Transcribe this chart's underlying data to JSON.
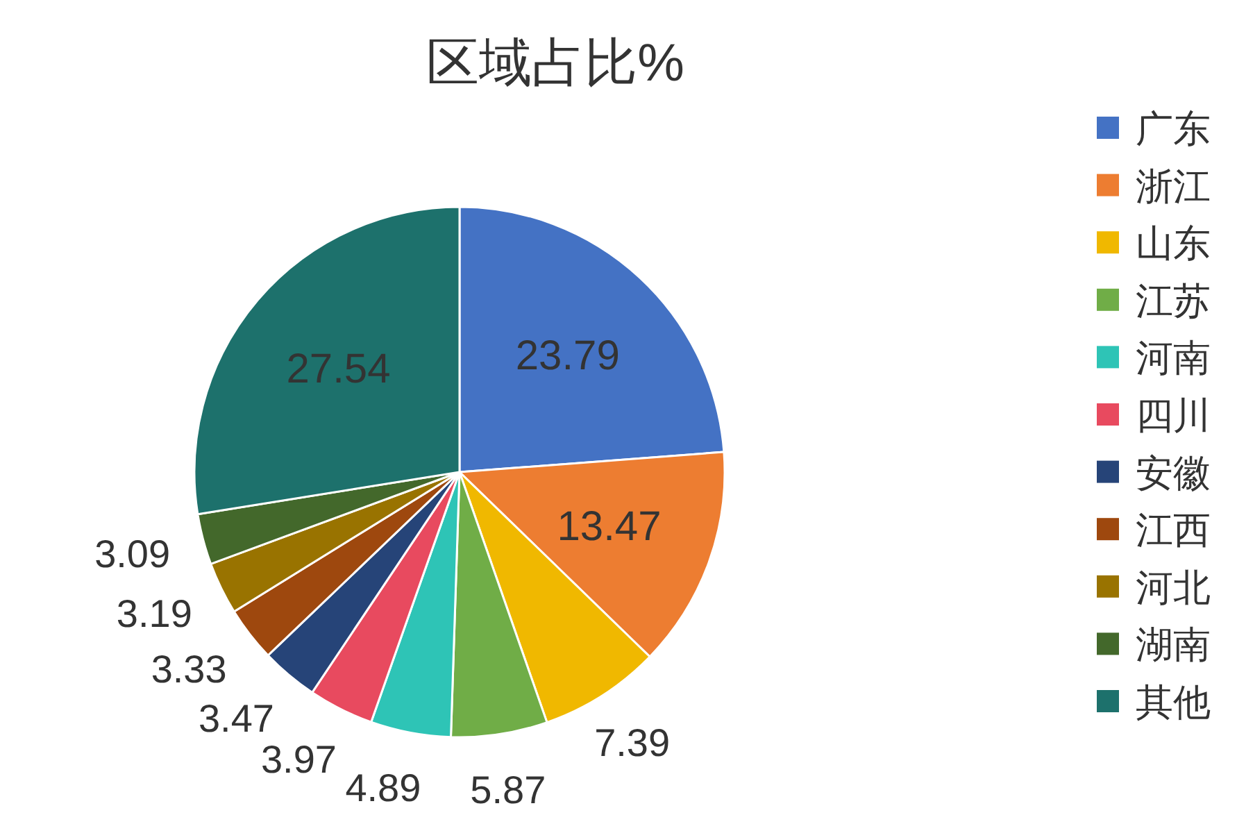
{
  "chart_data": {
    "type": "pie",
    "title": "区域占比%",
    "categories": [
      "广东",
      "浙江",
      "山东",
      "江苏",
      "河南",
      "四川",
      "安徽",
      "江西",
      "河北",
      "湖南",
      "其他"
    ],
    "values": [
      23.79,
      13.47,
      7.39,
      5.87,
      4.89,
      3.97,
      3.47,
      3.33,
      3.19,
      3.09,
      27.54
    ],
    "colors": [
      "#4472c4",
      "#ed7d31",
      "#f0b800",
      "#70ad47",
      "#2ec4b6",
      "#e84a5f",
      "#264478",
      "#9e480e",
      "#997300",
      "#43682b",
      "#1d716c"
    ],
    "data_labels": true,
    "legend": "right"
  }
}
